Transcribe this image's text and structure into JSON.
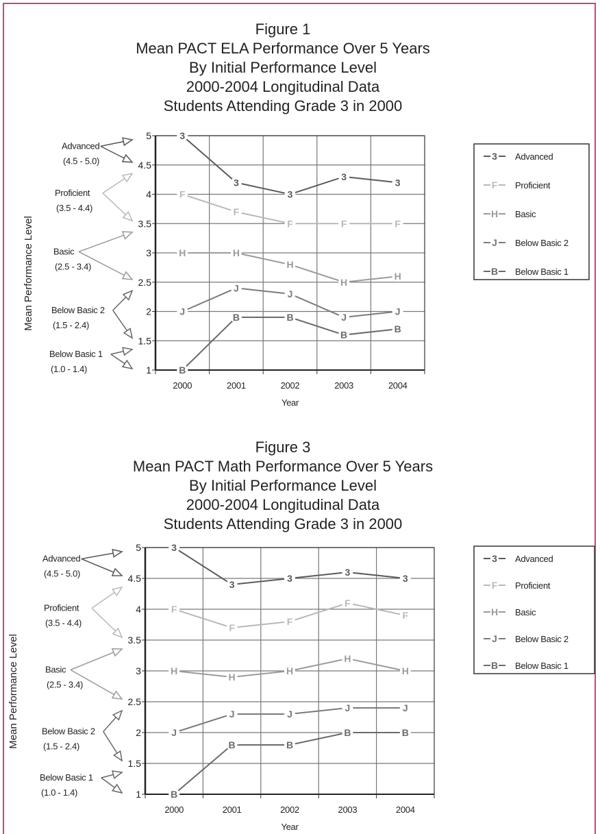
{
  "chart_data": [
    {
      "type": "line",
      "figure_label": "Figure 1",
      "title": "Mean PACT ELA Performance Over 5 Years",
      "subtitle": [
        "By Initial Performance Level",
        "2000-2004 Longitudinal Data",
        "Students Attending Grade 3 in 2000"
      ],
      "xlabel": "Year",
      "ylabel": "Mean Performance Level",
      "categories": [
        "2000",
        "2001",
        "2002",
        "2003",
        "2004"
      ],
      "ylim": [
        1,
        5
      ],
      "yticks": [
        "1",
        "1.5",
        "2",
        "2.5",
        "3",
        "3.5",
        "4",
        "4.5",
        "5"
      ],
      "grid": true,
      "legend_position": "right",
      "series": [
        {
          "name": "Advanced",
          "marker": "3",
          "color": "#5a5a5a",
          "values": [
            5.0,
            4.2,
            4.0,
            4.3,
            4.2
          ]
        },
        {
          "name": "Proficient",
          "marker": "F",
          "color": "#b8b8b8",
          "values": [
            4.0,
            3.7,
            3.5,
            3.5,
            3.5
          ]
        },
        {
          "name": "Basic",
          "marker": "H",
          "color": "#9a9a9a",
          "values": [
            3.0,
            3.0,
            2.8,
            2.5,
            2.6
          ]
        },
        {
          "name": "Below Basic 2",
          "marker": "J",
          "color": "#7a7a7a",
          "values": [
            2.0,
            2.4,
            2.3,
            1.9,
            2.0
          ]
        },
        {
          "name": "Below Basic 1",
          "marker": "B",
          "color": "#6a6a6a",
          "values": [
            1.0,
            1.9,
            1.9,
            1.6,
            1.7
          ]
        }
      ],
      "level_annotations": [
        {
          "name": "Advanced",
          "range": "(4.5 - 5.0)",
          "color": "#555555"
        },
        {
          "name": "Proficient",
          "range": "(3.5 - 4.4)",
          "color": "#b8b8b8"
        },
        {
          "name": "Basic",
          "range": "(2.5 - 3.4)",
          "color": "#9a9a9a"
        },
        {
          "name": "Below Basic 2",
          "range": "(1.5 - 2.4)",
          "color": "#666666"
        },
        {
          "name": "Below Basic 1",
          "range": "(1.0 - 1.4)",
          "color": "#666666"
        }
      ]
    },
    {
      "type": "line",
      "figure_label": "Figure 3",
      "title": "Mean PACT Math Performance Over 5 Years",
      "subtitle": [
        "By Initial Performance Level",
        "2000-2004 Longitudinal Data",
        "Students Attending Grade 3 in 2000"
      ],
      "xlabel": "Year",
      "ylabel": "Mean Performance Level",
      "categories": [
        "2000",
        "2001",
        "2002",
        "2003",
        "2004"
      ],
      "ylim": [
        1,
        5
      ],
      "yticks": [
        "1",
        "1.5",
        "2",
        "2.5",
        "3",
        "3.5",
        "4",
        "4.5",
        "5"
      ],
      "grid": true,
      "legend_position": "right",
      "series": [
        {
          "name": "Advanced",
          "marker": "3",
          "color": "#5a5a5a",
          "values": [
            5.0,
            4.4,
            4.5,
            4.6,
            4.5
          ]
        },
        {
          "name": "Proficient",
          "marker": "F",
          "color": "#b8b8b8",
          "values": [
            4.0,
            3.7,
            3.8,
            4.1,
            3.9
          ]
        },
        {
          "name": "Basic",
          "marker": "H",
          "color": "#9a9a9a",
          "values": [
            3.0,
            2.9,
            3.0,
            3.2,
            3.0
          ]
        },
        {
          "name": "Below Basic 2",
          "marker": "J",
          "color": "#7a7a7a",
          "values": [
            2.0,
            2.3,
            2.3,
            2.4,
            2.4
          ]
        },
        {
          "name": "Below Basic 1",
          "marker": "B",
          "color": "#6a6a6a",
          "values": [
            1.0,
            1.8,
            1.8,
            2.0,
            2.0
          ]
        }
      ],
      "level_annotations": [
        {
          "name": "Advanced",
          "range": "(4.5 - 5.0)",
          "color": "#555555"
        },
        {
          "name": "Proficient",
          "range": "(3.5 - 4.4)",
          "color": "#b8b8b8"
        },
        {
          "name": "Basic",
          "range": "(2.5 - 3.4)",
          "color": "#9a9a9a"
        },
        {
          "name": "Below Basic 2",
          "range": "(1.5 - 2.4)",
          "color": "#666666"
        },
        {
          "name": "Below Basic 1",
          "range": "(1.0 - 1.4)",
          "color": "#666666"
        }
      ]
    }
  ]
}
